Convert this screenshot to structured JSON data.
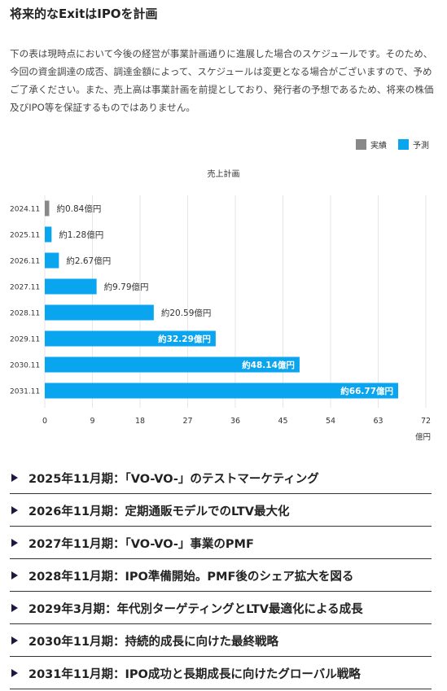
{
  "title": "将来的なExitはIPOを計画",
  "description": "下の表は現時点において今後の経営が事業計画通りに進展した場合のスケジュールです。そのため、今回の資金調達の成否、調達金額によって、スケジュールは変更となる場合がございますので、予めご了承ください。また、売上高は事業計画を前提としており、発行者の予想であるため、将来の株価及びIPO等を保証するものではありません。",
  "legend": {
    "actual": "実績",
    "forecast": "予測"
  },
  "colors": {
    "actual": "#888888",
    "forecast": "#0aa5ef",
    "grid": "#e6e6e6",
    "text": "#333333"
  },
  "chart_data": {
    "type": "bar",
    "orientation": "horizontal",
    "title": "売上計画",
    "xlabel": "億円",
    "xlim": [
      0,
      72
    ],
    "xticks": [
      0,
      9,
      18,
      27,
      36,
      45,
      54,
      63,
      72
    ],
    "categories": [
      "2024.11",
      "2025.11",
      "2026.11",
      "2027.11",
      "2028.11",
      "2029.11",
      "2030.11",
      "2031.11"
    ],
    "values": [
      0.84,
      1.28,
      2.67,
      9.79,
      20.59,
      32.29,
      48.14,
      66.77
    ],
    "labels": [
      "約0.84億円",
      "約1.28億円",
      "約2.67億円",
      "約9.79億円",
      "約20.59億円",
      "約32.29億円",
      "約48.14億円",
      "約66.77億円"
    ],
    "kinds": [
      "actual",
      "forecast",
      "forecast",
      "forecast",
      "forecast",
      "forecast",
      "forecast",
      "forecast"
    ],
    "grid": true,
    "legend_position": "top-right"
  },
  "milestones": [
    "2025年11月期：「VO-VO-」のテストマーケティング",
    "2026年11月期：定期通販モデルでのLTV最大化",
    "2027年11月期：「VO-VO-」事業のPMF",
    "2028年11月期：IPO準備開始。PMF後のシェア拡大を図る",
    "2029年3月期：年代別ターゲティングとLTV最適化による成長",
    "2030年11月期：持続的成長に向けた最終戦略",
    "2031年11月期：IPO成功と長期成長に向けたグローバル戦略"
  ]
}
